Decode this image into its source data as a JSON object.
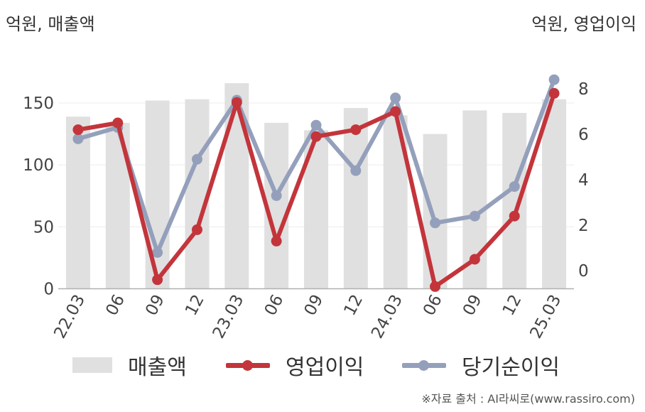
{
  "units": {
    "left": "억원, 매출액",
    "right": "억원, 영업이익"
  },
  "source": "※자료 출처 : AI라씨로(www.rassiro.com)",
  "colors": {
    "revenue": "#e0e0e0",
    "operating": "#c3353b",
    "net": "#94a0bb"
  },
  "chart_data": {
    "type": "bar+line",
    "categories": [
      "22.03",
      "06",
      "09",
      "12",
      "23.03",
      "06",
      "09",
      "12",
      "24.03",
      "06",
      "09",
      "12",
      "25.03"
    ],
    "y_left": {
      "ticks": [
        "0",
        "50",
        "100",
        "150"
      ],
      "range": [
        0,
        170
      ]
    },
    "y_right": {
      "ticks": [
        "0",
        "2",
        "4",
        "6",
        "8"
      ],
      "range": [
        -0.8,
        8.8
      ]
    },
    "series": [
      {
        "name": "매출액",
        "type": "bar",
        "axis": "left",
        "values": [
          139,
          134,
          152,
          153,
          166,
          134,
          128,
          146,
          140,
          125,
          144,
          142,
          153
        ]
      },
      {
        "name": "영업이익",
        "type": "line",
        "axis": "right",
        "values": [
          6.2,
          6.5,
          -0.4,
          1.8,
          7.4,
          1.3,
          5.9,
          6.2,
          7.0,
          -0.7,
          0.5,
          2.4,
          7.8
        ]
      },
      {
        "name": "당기순이익",
        "type": "line",
        "axis": "right",
        "values": [
          5.8,
          6.3,
          0.8,
          4.9,
          7.5,
          3.3,
          6.4,
          4.4,
          7.6,
          2.1,
          2.4,
          3.7,
          8.4
        ]
      }
    ],
    "grid": true,
    "legend": "bottom"
  }
}
